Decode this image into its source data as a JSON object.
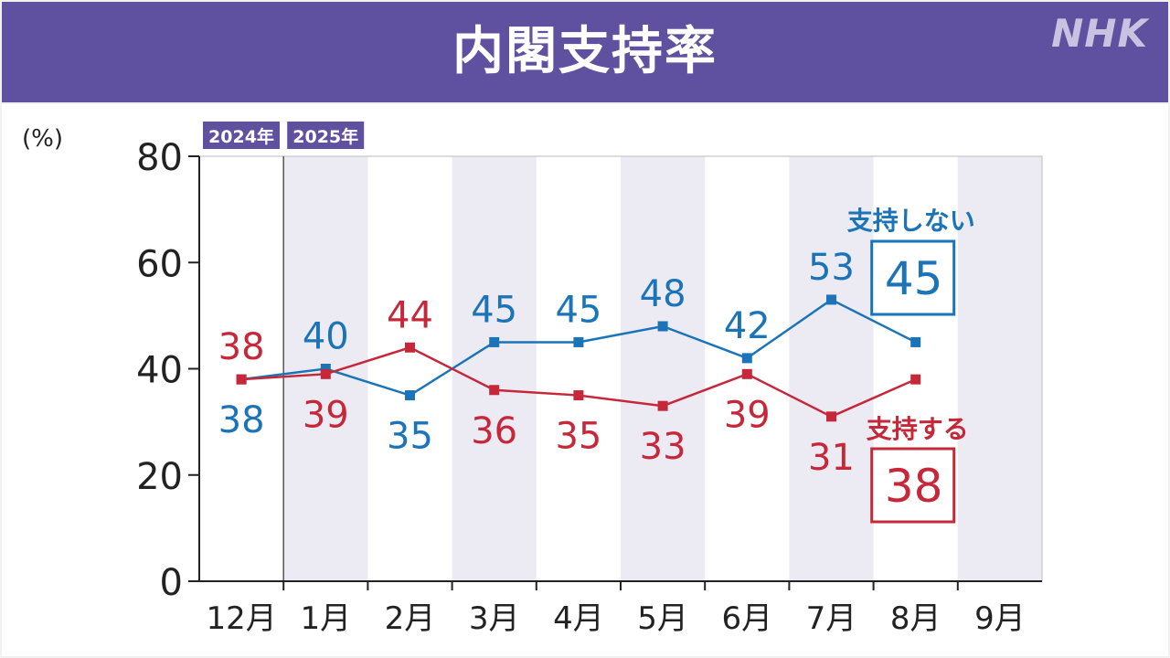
{
  "header": {
    "title": "内閣支持率",
    "logo": "NHK"
  },
  "chart_data": {
    "type": "line",
    "y_unit": "(%)",
    "ylim": [
      0,
      80
    ],
    "y_ticks": [
      0,
      20,
      40,
      60,
      80
    ],
    "categories": [
      "12月",
      "1月",
      "2月",
      "3月",
      "4月",
      "5月",
      "6月",
      "7月",
      "8月",
      "9月"
    ],
    "year_tags": [
      {
        "label": "2024年",
        "category_index": 0
      },
      {
        "label": "2025年",
        "category_index": 1
      }
    ],
    "series": [
      {
        "name": "支持しない",
        "color": "#1a74b7",
        "values": [
          38,
          40,
          35,
          45,
          45,
          48,
          42,
          53,
          45,
          null
        ],
        "latest_value": "45"
      },
      {
        "name": "支持する",
        "color": "#c6283a",
        "values": [
          38,
          39,
          44,
          36,
          35,
          33,
          39,
          31,
          38,
          null
        ],
        "latest_value": "38"
      }
    ],
    "grid": false,
    "background_bands": true
  },
  "colors": {
    "header": "#5f519f",
    "band": "#ecebf4",
    "disapprove": "#1a74b7",
    "approve": "#c6283a",
    "axis": "#222222"
  }
}
